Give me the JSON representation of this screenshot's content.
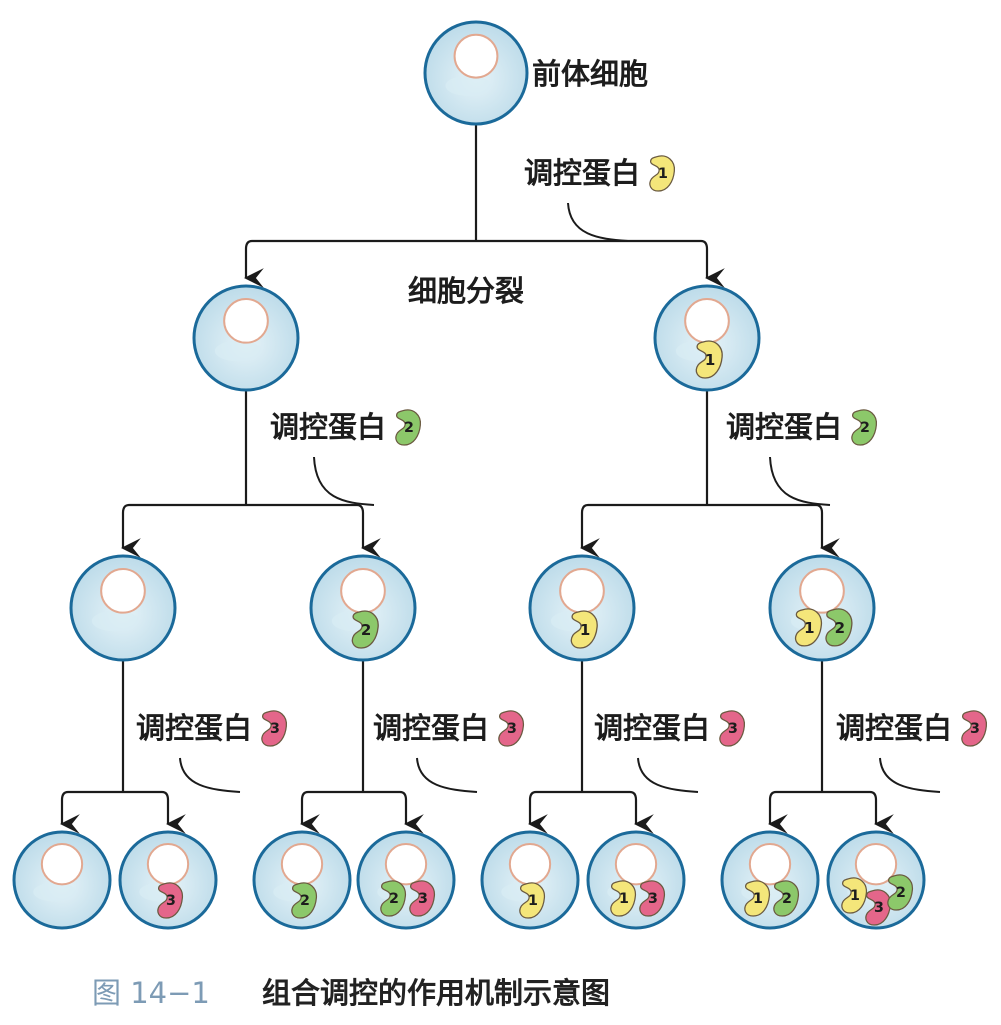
{
  "labels": {
    "precursor": "前体细胞",
    "division": "细胞分裂",
    "regulator": "调控蛋白"
  },
  "protein_numbers": {
    "p1": "1",
    "p2": "2",
    "p3": "3"
  },
  "colors": {
    "protein_1": "#f4e67a",
    "protein_2": "#8cc86a",
    "protein_3": "#e4668a",
    "cell_fill": "#c9e3ee",
    "cell_stroke": "#1b6a9a",
    "nucleus_fill": "#ffffff",
    "nucleus_stroke": "#e2a890",
    "line": "#1b1b1b",
    "caption_accent": "#7d9bb5"
  },
  "caption": {
    "fig_no": "图 14−1",
    "title": "组合调控的作用机制示意图"
  },
  "tree": {
    "root": {
      "proteins": []
    },
    "level1": [
      {
        "proteins": []
      },
      {
        "proteins": [
          "1"
        ]
      }
    ],
    "level2": [
      {
        "proteins": []
      },
      {
        "proteins": [
          "2"
        ]
      },
      {
        "proteins": [
          "1"
        ]
      },
      {
        "proteins": [
          "1",
          "2"
        ]
      }
    ],
    "level3": [
      {
        "proteins": []
      },
      {
        "proteins": [
          "3"
        ]
      },
      {
        "proteins": [
          "2"
        ]
      },
      {
        "proteins": [
          "2",
          "3"
        ]
      },
      {
        "proteins": [
          "1"
        ]
      },
      {
        "proteins": [
          "1",
          "3"
        ]
      },
      {
        "proteins": [
          "1",
          "2"
        ]
      },
      {
        "proteins": [
          "1",
          "3",
          "2"
        ]
      }
    ]
  }
}
